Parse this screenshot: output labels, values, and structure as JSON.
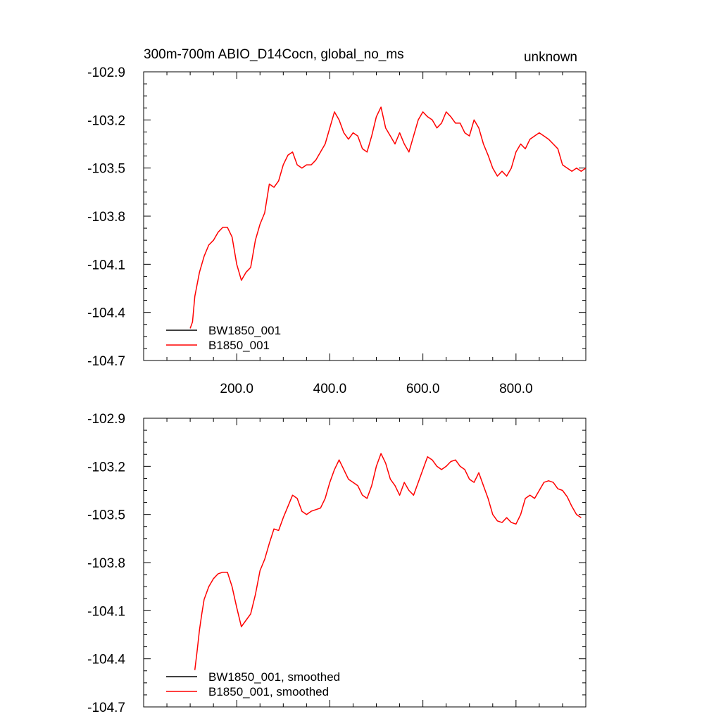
{
  "title_left": "300m-700m ABIO_D14Cocn, global_no_ms",
  "title_right": "unknown",
  "colors": {
    "BW1850_001": "#000000",
    "B1850_001": "#ff0000"
  },
  "chart_data": [
    {
      "type": "line",
      "xlim": [
        0,
        950
      ],
      "ylim": [
        -104.7,
        -102.9
      ],
      "xticks": [
        200,
        400,
        600,
        800
      ],
      "xtick_labels": [
        "200.0",
        "400.0",
        "600.0",
        "800.0"
      ],
      "yticks": [
        -102.9,
        -103.2,
        -103.5,
        -103.8,
        -104.1,
        -104.4,
        -104.7
      ],
      "ytick_labels": [
        "-102.9",
        "-103.2",
        "-103.5",
        "-103.8",
        "-104.1",
        "-104.4",
        "-104.7"
      ],
      "legend": [
        "BW1850_001",
        "B1850_001"
      ],
      "legend_position": "bottom-left",
      "series": [
        {
          "name": "BW1850_001",
          "color": "#000000",
          "x": [],
          "y": []
        },
        {
          "name": "B1850_001",
          "color": "#ff0000",
          "x": [
            100,
            105,
            110,
            120,
            130,
            140,
            150,
            160,
            170,
            180,
            190,
            200,
            210,
            220,
            230,
            240,
            250,
            260,
            270,
            280,
            290,
            300,
            310,
            320,
            330,
            340,
            350,
            360,
            370,
            380,
            390,
            400,
            410,
            420,
            430,
            440,
            450,
            460,
            470,
            480,
            490,
            500,
            510,
            520,
            530,
            540,
            550,
            560,
            570,
            580,
            590,
            600,
            610,
            620,
            630,
            640,
            650,
            660,
            670,
            680,
            690,
            700,
            710,
            720,
            730,
            740,
            750,
            760,
            770,
            780,
            790,
            800,
            810,
            820,
            830,
            840,
            850,
            860,
            870,
            880,
            890,
            900,
            910,
            920,
            930,
            940,
            950
          ],
          "y": [
            -104.5,
            -104.46,
            -104.3,
            -104.15,
            -104.05,
            -103.98,
            -103.95,
            -103.9,
            -103.87,
            -103.87,
            -103.93,
            -104.1,
            -104.2,
            -104.15,
            -104.12,
            -103.95,
            -103.85,
            -103.78,
            -103.6,
            -103.62,
            -103.58,
            -103.48,
            -103.42,
            -103.4,
            -103.48,
            -103.5,
            -103.48,
            -103.48,
            -103.45,
            -103.4,
            -103.35,
            -103.25,
            -103.15,
            -103.2,
            -103.28,
            -103.32,
            -103.28,
            -103.3,
            -103.38,
            -103.4,
            -103.3,
            -103.18,
            -103.12,
            -103.25,
            -103.3,
            -103.35,
            -103.28,
            -103.35,
            -103.4,
            -103.3,
            -103.2,
            -103.15,
            -103.18,
            -103.2,
            -103.25,
            -103.22,
            -103.15,
            -103.18,
            -103.22,
            -103.22,
            -103.28,
            -103.3,
            -103.2,
            -103.25,
            -103.35,
            -103.42,
            -103.5,
            -103.55,
            -103.52,
            -103.55,
            -103.5,
            -103.4,
            -103.35,
            -103.38,
            -103.32,
            -103.3,
            -103.28,
            -103.3,
            -103.32,
            -103.35,
            -103.38,
            -103.48,
            -103.5,
            -103.52,
            -103.5,
            -103.52,
            -103.5
          ]
        }
      ]
    },
    {
      "type": "line",
      "xlim": [
        0,
        950
      ],
      "ylim": [
        -104.7,
        -102.9
      ],
      "xticks": [
        200,
        400,
        600,
        800
      ],
      "yticks": [
        -102.9,
        -103.2,
        -103.5,
        -103.8,
        -104.1,
        -104.4,
        -104.7
      ],
      "ytick_labels": [
        "-102.9",
        "-103.2",
        "-103.5",
        "-103.8",
        "-104.1",
        "-104.4",
        "-104.7"
      ],
      "legend": [
        "BW1850_001, smoothed",
        "B1850_001, smoothed"
      ],
      "legend_position": "bottom-left",
      "series": [
        {
          "name": "BW1850_001, smoothed",
          "color": "#000000",
          "x": [],
          "y": []
        },
        {
          "name": "B1850_001, smoothed",
          "color": "#ff0000",
          "x": [
            110,
            115,
            120,
            125,
            130,
            140,
            150,
            160,
            170,
            180,
            190,
            200,
            205,
            210,
            220,
            230,
            240,
            250,
            260,
            270,
            280,
            290,
            300,
            310,
            320,
            330,
            340,
            350,
            360,
            370,
            380,
            390,
            400,
            410,
            420,
            430,
            440,
            450,
            460,
            470,
            480,
            490,
            500,
            510,
            520,
            530,
            540,
            550,
            560,
            570,
            580,
            590,
            600,
            610,
            620,
            630,
            640,
            650,
            660,
            670,
            680,
            690,
            700,
            710,
            720,
            730,
            740,
            750,
            760,
            770,
            780,
            790,
            800,
            810,
            820,
            830,
            840,
            850,
            860,
            870,
            880,
            890,
            900,
            910,
            920,
            930,
            940
          ],
          "y": [
            -104.47,
            -104.35,
            -104.22,
            -104.12,
            -104.03,
            -103.95,
            -103.9,
            -103.87,
            -103.86,
            -103.86,
            -103.95,
            -104.08,
            -104.14,
            -104.2,
            -104.16,
            -104.12,
            -104.0,
            -103.85,
            -103.78,
            -103.68,
            -103.59,
            -103.6,
            -103.52,
            -103.45,
            -103.38,
            -103.4,
            -103.48,
            -103.5,
            -103.48,
            -103.47,
            -103.46,
            -103.4,
            -103.3,
            -103.22,
            -103.16,
            -103.22,
            -103.28,
            -103.3,
            -103.32,
            -103.38,
            -103.4,
            -103.32,
            -103.2,
            -103.12,
            -103.18,
            -103.28,
            -103.32,
            -103.38,
            -103.3,
            -103.35,
            -103.38,
            -103.3,
            -103.22,
            -103.14,
            -103.16,
            -103.2,
            -103.22,
            -103.2,
            -103.17,
            -103.16,
            -103.2,
            -103.22,
            -103.28,
            -103.3,
            -103.24,
            -103.32,
            -103.4,
            -103.5,
            -103.54,
            -103.55,
            -103.52,
            -103.55,
            -103.56,
            -103.5,
            -103.4,
            -103.38,
            -103.4,
            -103.35,
            -103.3,
            -103.29,
            -103.3,
            -103.34,
            -103.35,
            -103.39,
            -103.45,
            -103.5,
            -103.52
          ]
        }
      ]
    }
  ]
}
